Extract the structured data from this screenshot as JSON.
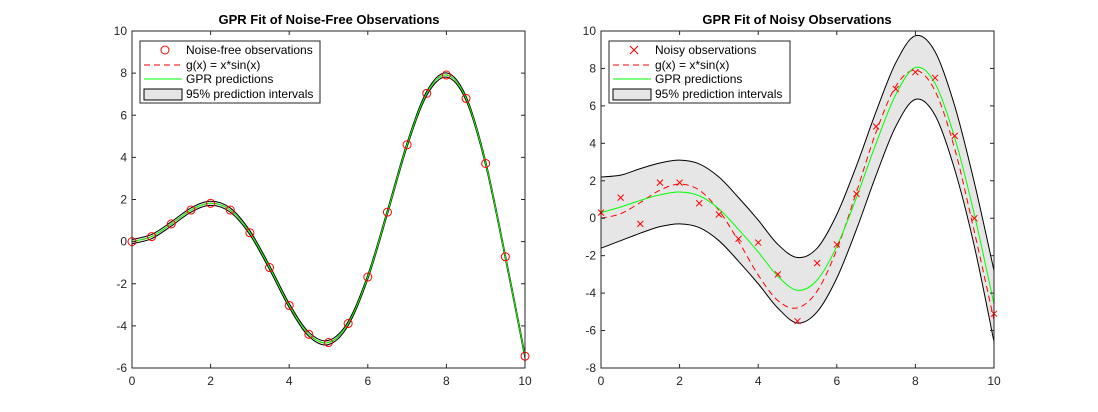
{
  "figure": {
    "colors": {
      "observation_marker": "#ff0000",
      "true_function": "#ff0000",
      "gpr_prediction": "#00ff00",
      "interval_fill": "#e6e6e6",
      "interval_edge": "#000000",
      "axes": "#262626"
    }
  },
  "chart_data": [
    {
      "type": "line",
      "title": "GPR Fit of Noise-Free Observations",
      "xlabel": "",
      "ylabel": "",
      "xlim": [
        0,
        10
      ],
      "ylim": [
        -6,
        10
      ],
      "xticks": [
        0,
        2,
        4,
        6,
        8,
        10
      ],
      "yticks": [
        -6,
        -4,
        -2,
        0,
        2,
        4,
        6,
        8,
        10
      ],
      "xtick_labels": [
        "0",
        "2",
        "4",
        "6",
        "8",
        "10"
      ],
      "ytick_labels": [
        "-6",
        "-4",
        "-2",
        "0",
        "2",
        "4",
        "6",
        "8",
        "10"
      ],
      "legend_location": "top-left",
      "legend": {
        "observations": "Noise-free observations",
        "true_function": "g(x) = x*sin(x)",
        "predictions": "GPR predictions",
        "intervals": "95% prediction intervals"
      },
      "marker": "circle",
      "observations": {
        "x": [
          0,
          0.5,
          1,
          1.5,
          2,
          2.5,
          3,
          3.5,
          4,
          4.5,
          5,
          5.5,
          6,
          6.5,
          7,
          7.5,
          8,
          8.5,
          9,
          9.5,
          10
        ],
        "y": [
          0,
          0.24,
          0.84,
          1.5,
          1.82,
          1.5,
          0.42,
          -1.23,
          -3.03,
          -4.4,
          -4.79,
          -3.89,
          -1.68,
          1.4,
          4.6,
          7.04,
          7.91,
          6.8,
          3.71,
          -0.72,
          -5.44
        ]
      },
      "true_function": {
        "x": [
          0,
          0.5,
          1,
          1.5,
          2,
          2.5,
          3,
          3.5,
          4,
          4.5,
          5,
          5.5,
          6,
          6.5,
          7,
          7.5,
          8,
          8.5,
          9,
          9.5,
          10
        ],
        "y": [
          0,
          0.24,
          0.84,
          1.5,
          1.82,
          1.5,
          0.42,
          -1.23,
          -3.03,
          -4.4,
          -4.79,
          -3.89,
          -1.68,
          1.4,
          4.6,
          7.04,
          7.91,
          6.8,
          3.71,
          -0.72,
          -5.44
        ]
      },
      "predictions": {
        "x": [
          0,
          0.5,
          1,
          1.5,
          2,
          2.5,
          3,
          3.5,
          4,
          4.5,
          5,
          5.5,
          6,
          6.5,
          7,
          7.5,
          8,
          8.5,
          9,
          9.5,
          10
        ],
        "y": [
          0,
          0.24,
          0.84,
          1.5,
          1.82,
          1.5,
          0.42,
          -1.23,
          -3.03,
          -4.4,
          -4.79,
          -3.89,
          -1.68,
          1.4,
          4.6,
          7.04,
          7.91,
          6.8,
          3.71,
          -0.72,
          -5.44
        ]
      },
      "interval_lower": [
        -0.1,
        0.14,
        0.74,
        1.4,
        1.72,
        1.4,
        0.32,
        -1.33,
        -3.13,
        -4.5,
        -4.89,
        -3.99,
        -1.78,
        1.3,
        4.5,
        6.94,
        7.81,
        6.7,
        3.61,
        -0.82,
        -5.54
      ],
      "interval_upper": [
        0.1,
        0.34,
        0.94,
        1.6,
        1.92,
        1.6,
        0.52,
        -1.13,
        -2.93,
        -4.3,
        -4.69,
        -3.79,
        -1.58,
        1.5,
        4.7,
        7.14,
        8.01,
        6.9,
        3.81,
        -0.62,
        -5.34
      ]
    },
    {
      "type": "line",
      "title": "GPR Fit of Noisy Observations",
      "xlabel": "",
      "ylabel": "",
      "xlim": [
        0,
        10
      ],
      "ylim": [
        -8,
        10
      ],
      "xticks": [
        0,
        2,
        4,
        6,
        8,
        10
      ],
      "yticks": [
        -8,
        -6,
        -4,
        -2,
        0,
        2,
        4,
        6,
        8,
        10
      ],
      "xtick_labels": [
        "0",
        "2",
        "4",
        "6",
        "8",
        "10"
      ],
      "ytick_labels": [
        "-8",
        "-6",
        "-4",
        "-2",
        "0",
        "2",
        "4",
        "6",
        "8",
        "10"
      ],
      "legend_location": "top-left",
      "legend": {
        "observations": "Noisy observations",
        "true_function": "g(x) = x*sin(x)",
        "predictions": "GPR predictions",
        "intervals": "95% prediction intervals"
      },
      "marker": "x",
      "observations": {
        "x": [
          0,
          0.5,
          1,
          1.5,
          2,
          2.5,
          3,
          3.5,
          4,
          4.5,
          5,
          5.5,
          6,
          6.5,
          7,
          7.5,
          8,
          8.5,
          9,
          9.5,
          10
        ],
        "y": [
          0.3,
          1.1,
          -0.3,
          1.9,
          1.9,
          0.8,
          0.2,
          -1.1,
          -1.3,
          -3.0,
          -5.5,
          -2.4,
          -1.4,
          1.3,
          4.9,
          6.9,
          7.8,
          7.5,
          4.4,
          0.0,
          -5.1
        ]
      },
      "true_function": {
        "x": [
          0,
          0.5,
          1,
          1.5,
          2,
          2.5,
          3,
          3.5,
          4,
          4.5,
          5,
          5.5,
          6,
          6.5,
          7,
          7.5,
          8,
          8.5,
          9,
          9.5,
          10
        ],
        "y": [
          0,
          0.24,
          0.84,
          1.5,
          1.82,
          1.5,
          0.42,
          -1.23,
          -3.03,
          -4.4,
          -4.79,
          -3.89,
          -1.68,
          1.4,
          4.6,
          7.04,
          7.91,
          6.8,
          3.71,
          -0.72,
          -5.44
        ]
      },
      "predictions": {
        "x": [
          0,
          0.5,
          1,
          1.5,
          2,
          2.5,
          3,
          3.5,
          4,
          4.5,
          5,
          5.5,
          6,
          6.5,
          7,
          7.5,
          8,
          8.5,
          9,
          9.5,
          10
        ],
        "y": [
          0.3,
          0.6,
          0.95,
          1.25,
          1.4,
          1.2,
          0.5,
          -0.6,
          -1.8,
          -3.1,
          -3.85,
          -3.3,
          -1.5,
          1.1,
          4.0,
          6.6,
          8.05,
          7.2,
          4.3,
          0.2,
          -4.6
        ]
      },
      "interval_lower": [
        -1.6,
        -1.2,
        -0.8,
        -0.45,
        -0.3,
        -0.5,
        -1.2,
        -2.3,
        -3.5,
        -4.8,
        -5.6,
        -5.0,
        -3.2,
        -0.6,
        2.3,
        4.9,
        6.35,
        5.5,
        2.6,
        -1.5,
        -6.6
      ],
      "interval_upper": [
        2.2,
        2.3,
        2.65,
        2.95,
        3.1,
        2.9,
        2.2,
        1.1,
        -0.1,
        -1.4,
        -2.1,
        -1.6,
        0.2,
        2.8,
        5.7,
        8.3,
        9.75,
        8.9,
        6.0,
        1.9,
        -2.8
      ]
    }
  ]
}
